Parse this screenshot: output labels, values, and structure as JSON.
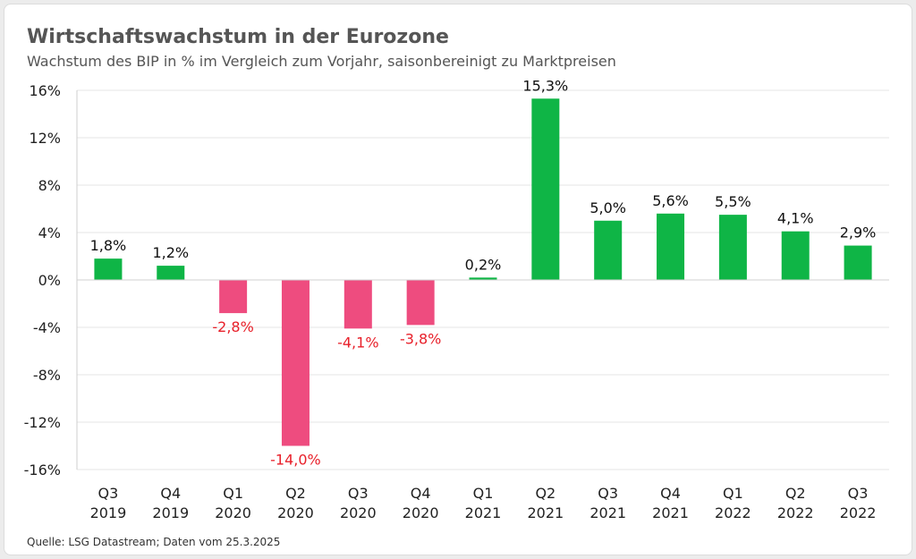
{
  "title": "Wirtschaftswachstum in der Eurozone",
  "subtitle": "Wachstum des BIP in % im Vergleich zum Vorjahr, saisonbereinigt zu Marktpreisen",
  "source": "Quelle: LSG Datastream; Daten vom 25.3.2025",
  "colors": {
    "positive": "#0fb546",
    "negative": "#ee4c7f",
    "negative_label": "#e8202a",
    "positive_label": "#111111",
    "grid": "#e4e4e4"
  },
  "chart_data": {
    "type": "bar",
    "categories": [
      "Q3 2019",
      "Q4 2019",
      "Q1 2020",
      "Q2 2020",
      "Q3 2020",
      "Q4 2020",
      "Q1 2021",
      "Q2 2021",
      "Q3 2021",
      "Q4 2021",
      "Q1 2022",
      "Q2 2022",
      "Q3 2022"
    ],
    "category_lines": [
      [
        "Q3",
        "2019"
      ],
      [
        "Q4",
        "2019"
      ],
      [
        "Q1",
        "2020"
      ],
      [
        "Q2",
        "2020"
      ],
      [
        "Q3",
        "2020"
      ],
      [
        "Q4",
        "2020"
      ],
      [
        "Q1",
        "2021"
      ],
      [
        "Q2",
        "2021"
      ],
      [
        "Q3",
        "2021"
      ],
      [
        "Q4",
        "2021"
      ],
      [
        "Q1",
        "2022"
      ],
      [
        "Q2",
        "2022"
      ],
      [
        "Q3",
        "2022"
      ]
    ],
    "values": [
      1.8,
      1.2,
      -2.8,
      -14.0,
      -4.1,
      -3.8,
      0.2,
      15.3,
      5.0,
      5.6,
      5.5,
      4.1,
      2.9
    ],
    "data_labels": [
      "1,8%",
      "1,2%",
      "-2,8%",
      "-14,0%",
      "-4,1%",
      "-3,8%",
      "0,2%",
      "15,3%",
      "5,0%",
      "5,6%",
      "5,5%",
      "4,1%",
      "2,9%"
    ],
    "ylim": [
      -16,
      16
    ],
    "yticks": [
      16,
      12,
      8,
      4,
      0,
      -4,
      -8,
      -12,
      -16
    ],
    "ytick_labels": [
      "16%",
      "12%",
      "8%",
      "4%",
      "0%",
      "-4%",
      "-8%",
      "-12%",
      "-16%"
    ],
    "title": "Wirtschaftswachstum in der Eurozone",
    "xlabel": "",
    "ylabel": "",
    "grid": true
  }
}
